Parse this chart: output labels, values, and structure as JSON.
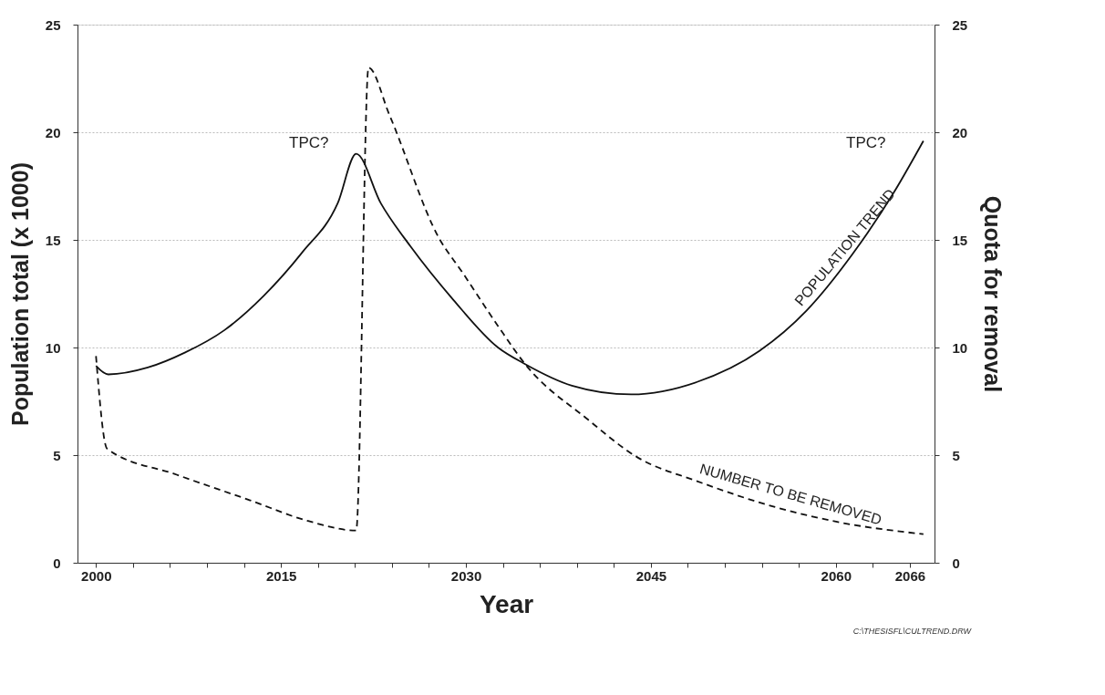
{
  "chart_data": {
    "type": "line",
    "xlabel": "Year",
    "ylabel": "Population total (x 1000)",
    "y2label": "Quota for removal",
    "xlim": [
      1998.5,
      2068
    ],
    "ylim": [
      0,
      25
    ],
    "y2lim": [
      0,
      25
    ],
    "yticks": [
      0,
      5,
      10,
      15,
      20,
      25
    ],
    "y2ticks": [
      0,
      5,
      10,
      15,
      20,
      25
    ],
    "xticks": [
      {
        "value": 2000,
        "label": "2000"
      },
      {
        "value": 2003,
        "label": null
      },
      {
        "value": 2006,
        "label": null
      },
      {
        "value": 2009,
        "label": null
      },
      {
        "value": 2012,
        "label": null
      },
      {
        "value": 2015,
        "label": "2015"
      },
      {
        "value": 2018,
        "label": null
      },
      {
        "value": 2021,
        "label": null
      },
      {
        "value": 2024,
        "label": null
      },
      {
        "value": 2027,
        "label": null
      },
      {
        "value": 2030,
        "label": "2030"
      },
      {
        "value": 2033,
        "label": null
      },
      {
        "value": 2036,
        "label": null
      },
      {
        "value": 2039,
        "label": null
      },
      {
        "value": 2042,
        "label": null
      },
      {
        "value": 2045,
        "label": "2045"
      },
      {
        "value": 2048,
        "label": null
      },
      {
        "value": 2051,
        "label": null
      },
      {
        "value": 2054,
        "label": null
      },
      {
        "value": 2057,
        "label": null
      },
      {
        "value": 2060,
        "label": "2060"
      },
      {
        "value": 2063,
        "label": null
      },
      {
        "value": 2066,
        "label": "2066"
      }
    ],
    "grid": "y",
    "series": [
      {
        "name": "POPULATION TREND",
        "color": "#111111",
        "line_style": "solid",
        "x": [
          2000,
          2001.0,
          2004.2,
          2007.2,
          2010.4,
          2013.6,
          2016.7,
          2019.6,
          2021.1,
          2023.1,
          2025.5,
          2029.0,
          2032.6,
          2034.8,
          2038.6,
          2043.4,
          2048.7,
          2053.8,
          2057.6,
          2061.3,
          2064.7,
          2067.1
        ],
        "values": [
          9.15,
          8.75,
          9.07,
          9.76,
          10.8,
          12.4,
          14.4,
          16.7,
          19.0,
          16.7,
          14.7,
          12.2,
          10.0,
          9.23,
          8.23,
          7.82,
          8.39,
          9.84,
          11.7,
          14.3,
          17.2,
          19.6
        ]
      },
      {
        "name": "NUMBER TO BE REMOVED",
        "color": "#111111",
        "line_style": "dashed",
        "axis": "y2",
        "x": [
          2000,
          2000.9,
          2006.5,
          2012.5,
          2017.2,
          2021.1,
          2022.1,
          2023.8,
          2027.8,
          2029.7,
          2032.6,
          2034.8,
          2039.9,
          2043.9,
          2048.7,
          2055.0,
          2060.1,
          2067.1
        ],
        "values": [
          9.6,
          5.3,
          4.1,
          2.9,
          1.94,
          1.5,
          23.0,
          20.8,
          15.1,
          13.5,
          11.0,
          9.23,
          6.65,
          4.9,
          3.8,
          2.6,
          1.9,
          1.33
        ]
      }
    ],
    "annotations": [
      "TPC?",
      "TPC?",
      "C:\\THESISFL\\CULTREND.DRW"
    ]
  }
}
